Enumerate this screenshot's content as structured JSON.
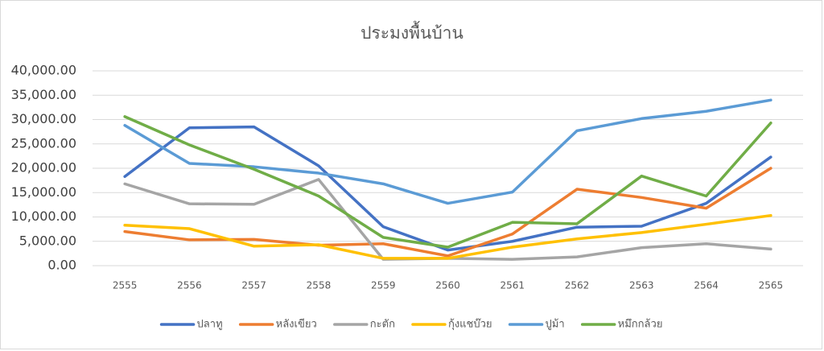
{
  "chart_data": {
    "type": "line",
    "title": "ประมงพื้นบ้าน",
    "categories": [
      "2555",
      "2556",
      "2557",
      "2558",
      "2559",
      "2560",
      "2561",
      "2562",
      "2563",
      "2564",
      "2565"
    ],
    "series": [
      {
        "name": "ปลาทู",
        "color": "#4472c4",
        "values": [
          18300,
          28300,
          28500,
          20500,
          8000,
          3200,
          5000,
          7900,
          8100,
          12800,
          22300
        ]
      },
      {
        "name": "หลังเขียว",
        "color": "#ed7d31",
        "values": [
          7000,
          5300,
          5400,
          4200,
          4500,
          2000,
          6500,
          15700,
          14000,
          11800,
          20000
        ]
      },
      {
        "name": "กะตัก",
        "color": "#a5a5a5",
        "values": [
          16800,
          12700,
          12600,
          17700,
          1300,
          1500,
          1300,
          1800,
          3700,
          4500,
          3400
        ]
      },
      {
        "name": "กุ้งแชบ๊วย",
        "color": "#ffc000",
        "values": [
          8300,
          7600,
          4000,
          4300,
          1500,
          1500,
          3800,
          5500,
          6800,
          8500,
          10300
        ]
      },
      {
        "name": "ปูม้า",
        "color": "#5b9bd5",
        "values": [
          28800,
          21000,
          20300,
          19000,
          16800,
          12800,
          15100,
          27700,
          30200,
          31700,
          34000
        ]
      },
      {
        "name": "หมึกกล้วย",
        "color": "#70ad47",
        "values": [
          30600,
          24800,
          19800,
          14300,
          5800,
          3800,
          8900,
          8600,
          18400,
          14300,
          29300
        ]
      }
    ],
    "ylim": [
      0,
      40000
    ],
    "yticks": [
      {
        "value": 0,
        "label": "0.00"
      },
      {
        "value": 5000,
        "label": "5,000.00"
      },
      {
        "value": 10000,
        "label": "10,000.00"
      },
      {
        "value": 15000,
        "label": "15,000.00"
      },
      {
        "value": 20000,
        "label": "20,000.00"
      },
      {
        "value": 25000,
        "label": "25,000.00"
      },
      {
        "value": 30000,
        "label": "30,000.00"
      },
      {
        "value": 35000,
        "label": "35,000.00"
      },
      {
        "value": 40000,
        "label": "40,000.00"
      }
    ],
    "grid": true,
    "legend": "bottom"
  }
}
